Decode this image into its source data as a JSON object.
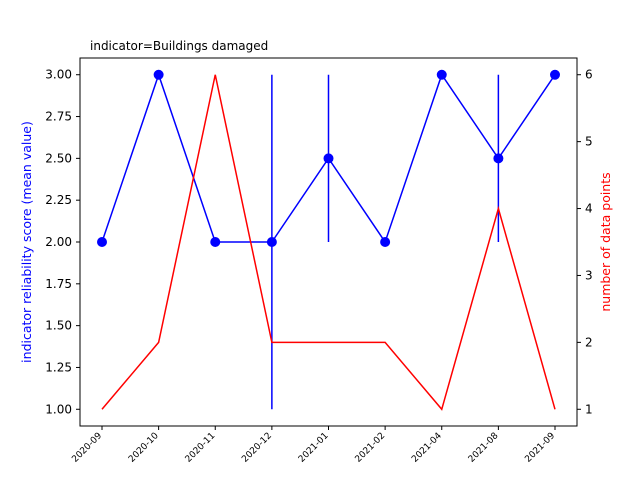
{
  "chart_data": {
    "type": "line",
    "title": "indicator=Buildings damaged",
    "categories": [
      "2020-09",
      "2020-10",
      "2020-11",
      "2020-12",
      "2021-01",
      "2021-02",
      "2021-04",
      "2021-08",
      "2021-09"
    ],
    "y_left": {
      "label": "indicator reliability score (mean value)",
      "color": "#0000ff",
      "lim": [
        0.9,
        3.1
      ],
      "ticks": [
        1.0,
        1.25,
        1.5,
        1.75,
        2.0,
        2.25,
        2.5,
        2.75,
        3.0
      ]
    },
    "y_right": {
      "label": "number of data points",
      "color": "#ff0000",
      "lim": [
        0.75,
        6.25
      ],
      "ticks": [
        1,
        2,
        3,
        4,
        5,
        6
      ]
    },
    "series": [
      {
        "axis": "left",
        "color": "#0000ff",
        "marker": "circle",
        "values": [
          2.0,
          3.0,
          2.0,
          2.0,
          2.5,
          2.0,
          3.0,
          2.5,
          3.0
        ],
        "error_low": [
          2.0,
          3.0,
          2.0,
          1.0,
          2.0,
          2.0,
          3.0,
          2.0,
          3.0
        ],
        "error_high": [
          2.0,
          3.0,
          2.0,
          3.0,
          3.0,
          2.0,
          3.0,
          3.0,
          3.0
        ]
      },
      {
        "axis": "right",
        "color": "#ff0000",
        "values": [
          1,
          2,
          6,
          2,
          2,
          2,
          1,
          4,
          1
        ]
      }
    ],
    "grid": false
  }
}
